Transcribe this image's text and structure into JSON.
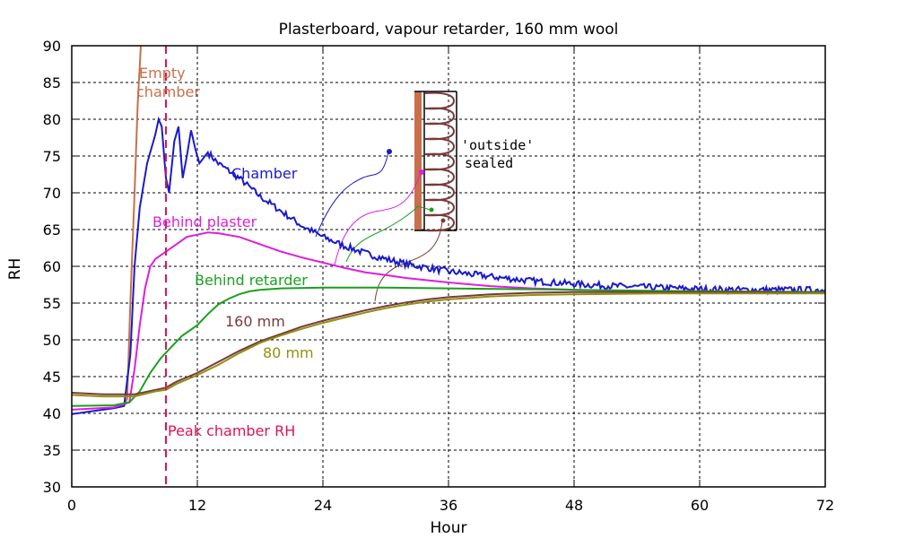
{
  "chart_data": {
    "type": "line",
    "title": "Plasterboard, vapour retarder, 160 mm wool",
    "xlabel": "Hour",
    "ylabel": "RH",
    "xlim": [
      0,
      72
    ],
    "ylim": [
      30,
      90
    ],
    "xticks": [
      0,
      12,
      24,
      36,
      48,
      60,
      72
    ],
    "yticks": [
      30,
      35,
      40,
      45,
      50,
      55,
      60,
      65,
      70,
      75,
      80,
      85,
      90
    ],
    "grid": true,
    "legend": "inline labels",
    "series": [
      {
        "name": "Empty chamber",
        "color": "#c8704c",
        "points": [
          [
            5.0,
            41.0
          ],
          [
            5.3,
            42.0
          ],
          [
            5.6,
            55.0
          ],
          [
            6.0,
            70.0
          ],
          [
            6.3,
            82.0
          ],
          [
            6.6,
            90.0
          ]
        ]
      },
      {
        "name": "Chamber",
        "color": "#1a1acc",
        "noisy": true,
        "points": [
          [
            0,
            39.9
          ],
          [
            2,
            40.3
          ],
          [
            4,
            40.7
          ],
          [
            5,
            41.0
          ],
          [
            5.6,
            48.0
          ],
          [
            6.0,
            60.0
          ],
          [
            6.5,
            68.0
          ],
          [
            7.2,
            74.0
          ],
          [
            8.0,
            78.0
          ],
          [
            8.3,
            80.0
          ],
          [
            8.6,
            79.0
          ],
          [
            9.0,
            72.0
          ],
          [
            9.3,
            70.0
          ],
          [
            9.8,
            77.0
          ],
          [
            10.2,
            79.0
          ],
          [
            10.6,
            72.0
          ],
          [
            11.0,
            75.0
          ],
          [
            11.4,
            78.5
          ],
          [
            11.8,
            76.0
          ],
          [
            12.2,
            74.0
          ],
          [
            13.0,
            75.5
          ],
          [
            14,
            74.0
          ],
          [
            16,
            72.0
          ],
          [
            18,
            69.5
          ],
          [
            20,
            67.5
          ],
          [
            22,
            65.5
          ],
          [
            24,
            64.0
          ],
          [
            26,
            62.8
          ],
          [
            28,
            61.8
          ],
          [
            30,
            61.0
          ],
          [
            32,
            60.3
          ],
          [
            34,
            59.8
          ],
          [
            36,
            59.3
          ],
          [
            40,
            58.6
          ],
          [
            44,
            58.0
          ],
          [
            48,
            57.6
          ],
          [
            52,
            57.3
          ],
          [
            56,
            57.1
          ],
          [
            60,
            56.9
          ],
          [
            64,
            56.8
          ],
          [
            68,
            56.8
          ],
          [
            72,
            56.8
          ]
        ]
      },
      {
        "name": "Behind plaster",
        "color": "#dd1edd",
        "points": [
          [
            0,
            40.5
          ],
          [
            4,
            40.8
          ],
          [
            5.5,
            41.5
          ],
          [
            6.0,
            46.0
          ],
          [
            6.5,
            52.0
          ],
          [
            7.0,
            57.0
          ],
          [
            7.5,
            60.0
          ],
          [
            8.0,
            61.0
          ],
          [
            9,
            62.0
          ],
          [
            10,
            63.0
          ],
          [
            11,
            64.0
          ],
          [
            12,
            64.3
          ],
          [
            13,
            64.6
          ],
          [
            14,
            64.5
          ],
          [
            16,
            64.0
          ],
          [
            18,
            63.0
          ],
          [
            20,
            62.0
          ],
          [
            22,
            61.2
          ],
          [
            24,
            60.5
          ],
          [
            26,
            59.8
          ],
          [
            28,
            59.2
          ],
          [
            30,
            58.8
          ],
          [
            32,
            58.4
          ],
          [
            36,
            57.8
          ],
          [
            40,
            57.3
          ],
          [
            44,
            57.0
          ],
          [
            48,
            56.8
          ],
          [
            52,
            56.7
          ],
          [
            60,
            56.6
          ],
          [
            72,
            56.5
          ]
        ]
      },
      {
        "name": "Behind retarder",
        "color": "#1ca01c",
        "points": [
          [
            0,
            41.0
          ],
          [
            4,
            41.1
          ],
          [
            5.5,
            41.5
          ],
          [
            6.5,
            43.0
          ],
          [
            7.5,
            45.5
          ],
          [
            8.5,
            47.5
          ],
          [
            9.5,
            49.0
          ],
          [
            10.5,
            50.5
          ],
          [
            12,
            52.0
          ],
          [
            13,
            53.5
          ],
          [
            14,
            54.8
          ],
          [
            15,
            55.6
          ],
          [
            16,
            56.2
          ],
          [
            17,
            56.6
          ],
          [
            18,
            56.8
          ],
          [
            20,
            57.0
          ],
          [
            24,
            57.1
          ],
          [
            30,
            57.1
          ],
          [
            36,
            57.0
          ],
          [
            48,
            56.8
          ],
          [
            60,
            56.6
          ],
          [
            72,
            56.5
          ]
        ]
      },
      {
        "name": "160 mm",
        "color": "#7a3a3a",
        "points": [
          [
            0,
            42.8
          ],
          [
            3,
            42.6
          ],
          [
            6,
            42.6
          ],
          [
            8,
            43.2
          ],
          [
            9,
            43.5
          ],
          [
            10,
            44.3
          ],
          [
            12,
            45.5
          ],
          [
            14,
            47.0
          ],
          [
            16,
            48.5
          ],
          [
            18,
            49.8
          ],
          [
            20,
            50.8
          ],
          [
            22,
            51.8
          ],
          [
            24,
            52.6
          ],
          [
            26,
            53.3
          ],
          [
            28,
            54.0
          ],
          [
            30,
            54.6
          ],
          [
            32,
            55.1
          ],
          [
            34,
            55.5
          ],
          [
            36,
            55.8
          ],
          [
            40,
            56.2
          ],
          [
            44,
            56.4
          ],
          [
            48,
            56.5
          ],
          [
            56,
            56.5
          ],
          [
            64,
            56.5
          ],
          [
            72,
            56.4
          ]
        ]
      },
      {
        "name": "80 mm",
        "color": "#909010",
        "points": [
          [
            0,
            42.5
          ],
          [
            3,
            42.3
          ],
          [
            6,
            42.3
          ],
          [
            8,
            43.0
          ],
          [
            9,
            43.2
          ],
          [
            10,
            44.0
          ],
          [
            12,
            45.2
          ],
          [
            14,
            46.6
          ],
          [
            16,
            48.2
          ],
          [
            18,
            49.6
          ],
          [
            20,
            50.6
          ],
          [
            22,
            51.5
          ],
          [
            24,
            52.3
          ],
          [
            26,
            53.0
          ],
          [
            28,
            53.7
          ],
          [
            30,
            54.3
          ],
          [
            32,
            54.8
          ],
          [
            34,
            55.2
          ],
          [
            36,
            55.5
          ],
          [
            40,
            55.9
          ],
          [
            44,
            56.1
          ],
          [
            48,
            56.2
          ],
          [
            56,
            56.3
          ],
          [
            64,
            56.3
          ],
          [
            72,
            56.3
          ]
        ]
      }
    ],
    "series_labels": [
      {
        "text": "Empty",
        "color": "#c8704c"
      },
      {
        "text": "chamber",
        "color": "#c8704c"
      },
      {
        "text": "Chamber",
        "color": "#1a1acc"
      },
      {
        "text": "Behind plaster",
        "color": "#dd1edd"
      },
      {
        "text": "Behind retarder",
        "color": "#1ca01c"
      },
      {
        "text": "160 mm",
        "color": "#7a3a3a"
      },
      {
        "text": "80 mm",
        "color": "#909010"
      }
    ],
    "vertical_marker": {
      "x": 9,
      "label": "Peak chamber RH",
      "color": "#dd1455"
    },
    "diagram": {
      "label_line1": "'outside'",
      "label_line2": "sealed"
    }
  }
}
